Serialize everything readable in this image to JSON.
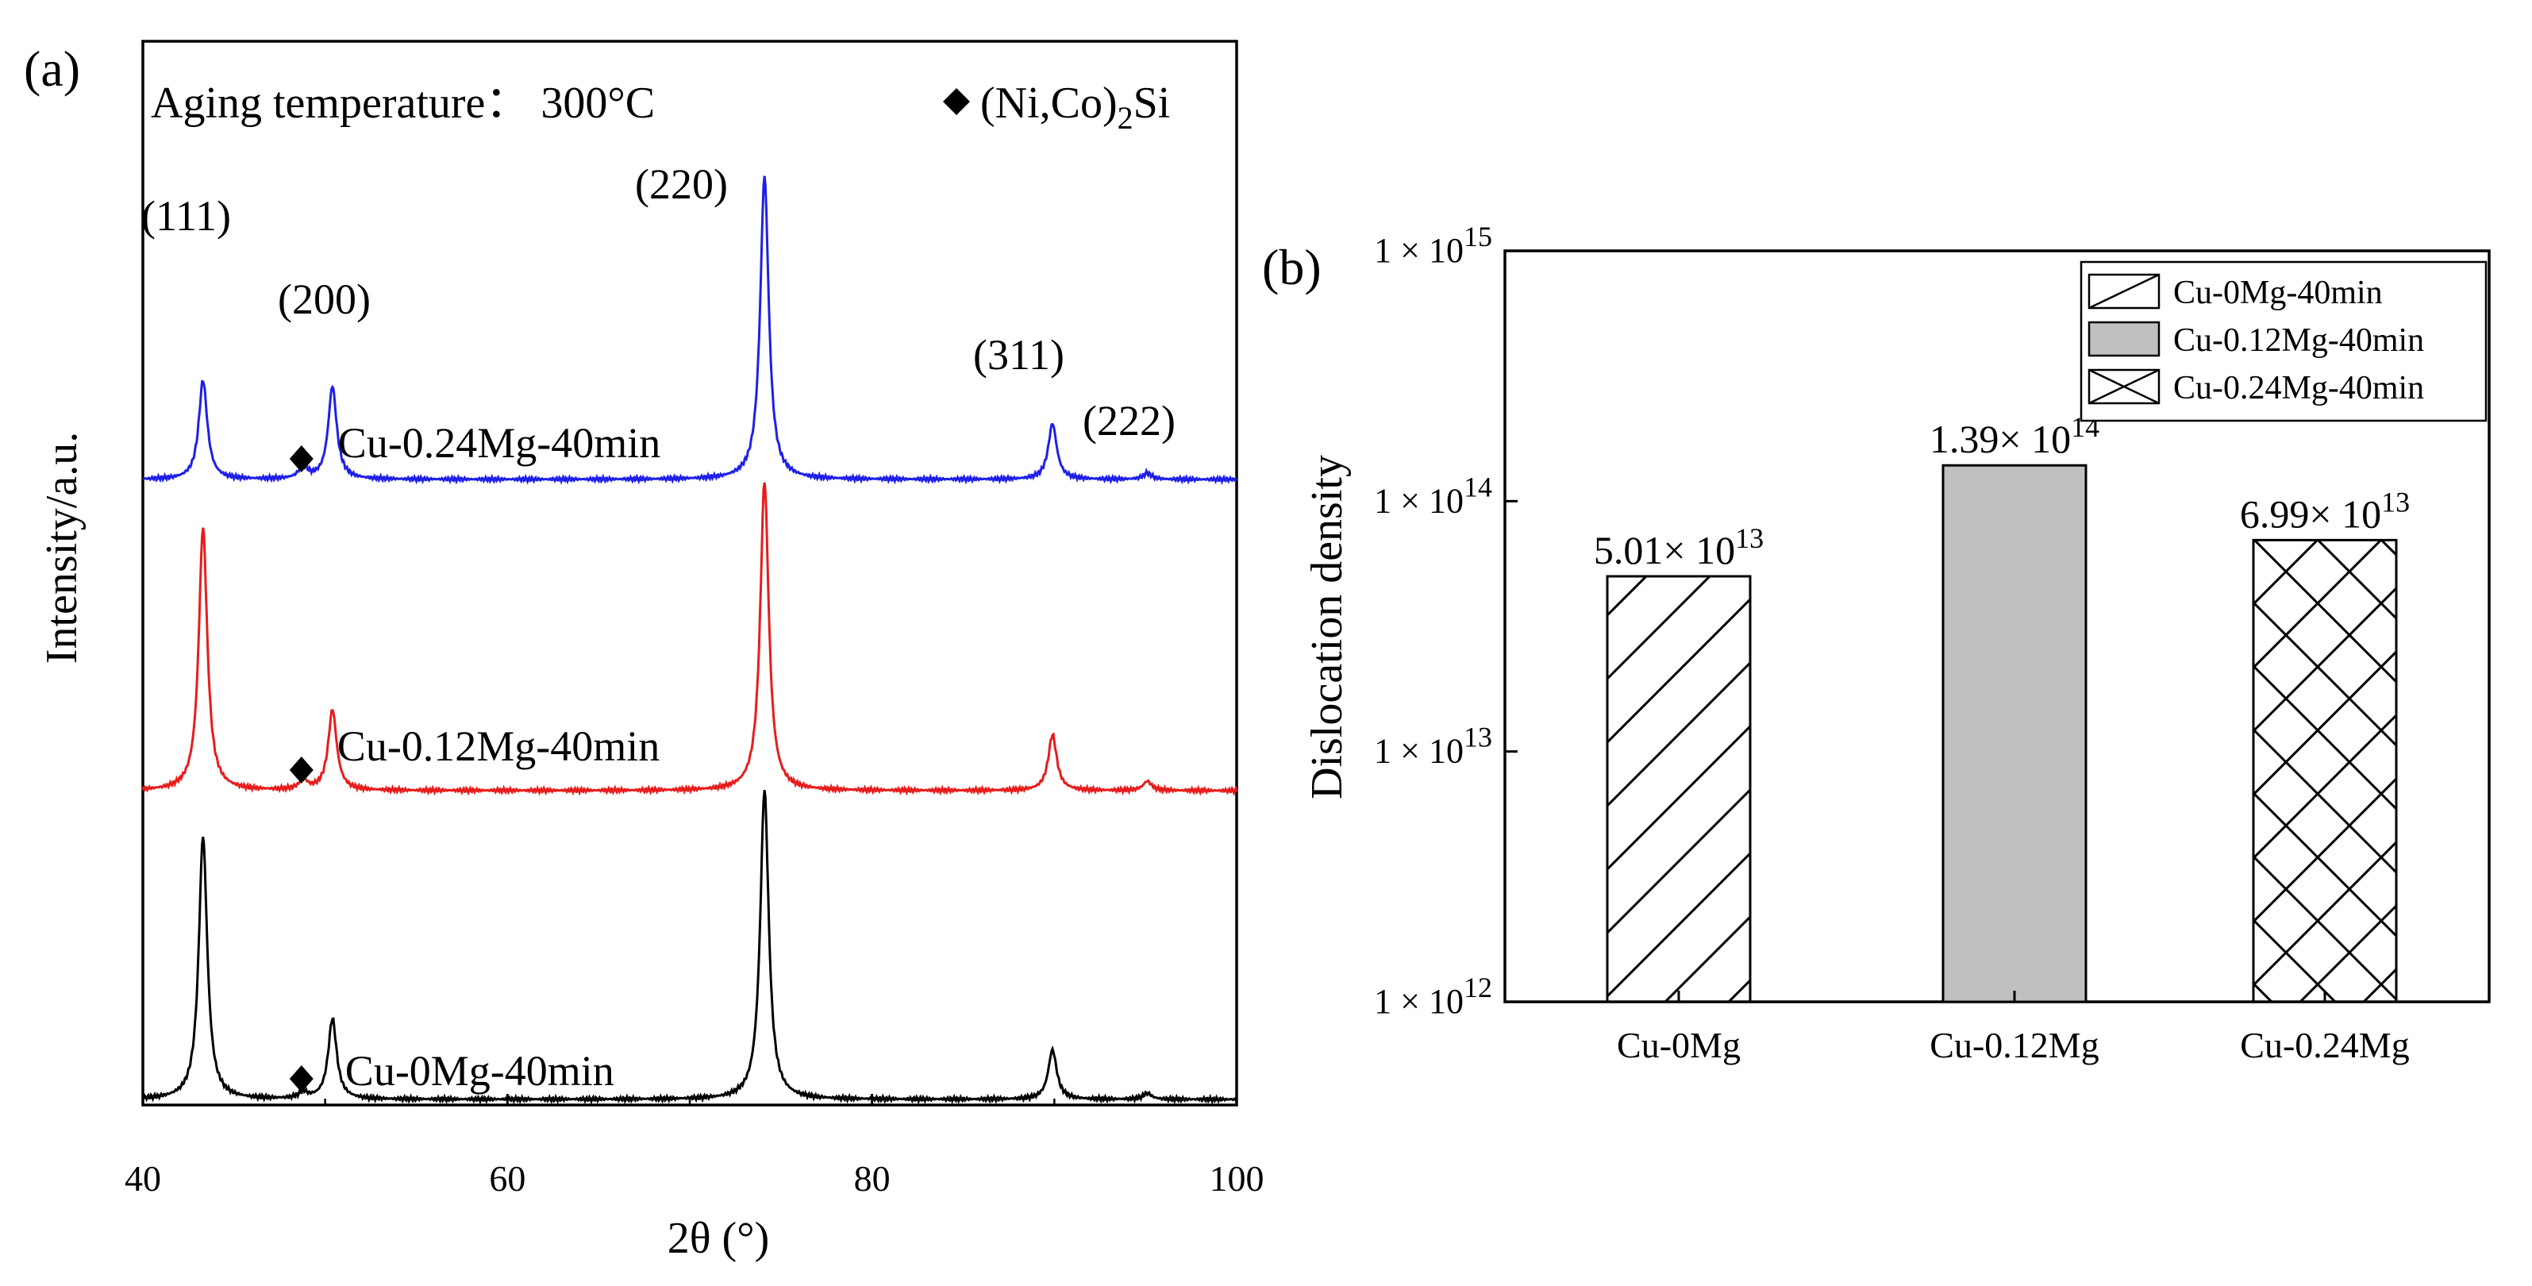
{
  "chart_data": [
    {
      "panel": "(a)",
      "type": "line",
      "xlabel": "2θ (°)",
      "ylabel": "Intensity/a.u.",
      "xlim": [
        40,
        100
      ],
      "xticks": [
        "40",
        "60",
        "80",
        "100"
      ],
      "annotation": "Aging temperature： 300°C",
      "phase_legend": {
        "marker": "diamond",
        "label": "(Ni,Co)",
        "sub": "2",
        "suffix": "Si"
      },
      "hkl_peaks": [
        {
          "label": "(111)",
          "x": 43.3
        },
        {
          "label": "(200)",
          "x": 50.4
        },
        {
          "label": "(220)",
          "x": 74.1
        },
        {
          "label": "(311)",
          "x": 89.9
        },
        {
          "label": "(222)",
          "x": 95.1
        }
      ],
      "series": [
        {
          "name": "Cu-0.24Mg-40min",
          "color": "#1f1fe8",
          "offset": 2,
          "phase_marker_x": 48.7,
          "peaks": [
            {
              "x": 43.3,
              "h": 0.32
            },
            {
              "x": 48.8,
              "h": 0.04
            },
            {
              "x": 50.4,
              "h": 0.3
            },
            {
              "x": 74.1,
              "h": 0.98
            },
            {
              "x": 89.9,
              "h": 0.18
            },
            {
              "x": 95.1,
              "h": 0.02
            }
          ]
        },
        {
          "name": "Cu-0.12Mg-40min",
          "color": "#e81c1c",
          "offset": 1,
          "phase_marker_x": 48.7,
          "peaks": [
            {
              "x": 43.3,
              "h": 0.85
            },
            {
              "x": 48.8,
              "h": 0.03
            },
            {
              "x": 50.4,
              "h": 0.26
            },
            {
              "x": 74.1,
              "h": 1.0
            },
            {
              "x": 89.9,
              "h": 0.18
            },
            {
              "x": 95.1,
              "h": 0.03
            }
          ]
        },
        {
          "name": "Cu-0Mg-40min",
          "color": "#000000",
          "offset": 0,
          "phase_marker_x": 48.7,
          "peaks": [
            {
              "x": 43.3,
              "h": 0.85
            },
            {
              "x": 48.8,
              "h": 0.02
            },
            {
              "x": 50.4,
              "h": 0.26
            },
            {
              "x": 74.1,
              "h": 1.0
            },
            {
              "x": 89.9,
              "h": 0.16
            },
            {
              "x": 95.1,
              "h": 0.02
            }
          ]
        }
      ]
    },
    {
      "panel": "(b)",
      "type": "bar",
      "yscale": "log",
      "ylabel": "Dislocation density",
      "ylim": [
        1000000000000.0,
        1000000000000000.0
      ],
      "yticks": [
        {
          "mant": "1 × 10",
          "exp": "12",
          "value": 1000000000000.0
        },
        {
          "mant": "1 × 10",
          "exp": "13",
          "value": 10000000000000.0
        },
        {
          "mant": "1 × 10",
          "exp": "14",
          "value": 100000000000000.0
        },
        {
          "mant": "1 × 10",
          "exp": "15",
          "value": 1000000000000000.0
        }
      ],
      "categories": [
        "Cu-0Mg",
        "Cu-0.12Mg",
        "Cu-0.24Mg"
      ],
      "values": [
        50100000000000.0,
        139000000000000.0,
        69900000000000.0
      ],
      "value_labels": [
        {
          "mant": "5.01× 10",
          "exp": "13"
        },
        {
          "mant": "1.39× 10",
          "exp": "14"
        },
        {
          "mant": "6.99× 10",
          "exp": "13"
        }
      ],
      "patterns": [
        "diagonal",
        "solid-gray",
        "crosshatch"
      ],
      "legend": {
        "position": "top-right",
        "entries": [
          "Cu-0Mg-40min",
          "Cu-0.12Mg-40min",
          "Cu-0.24Mg-40min"
        ]
      }
    }
  ]
}
